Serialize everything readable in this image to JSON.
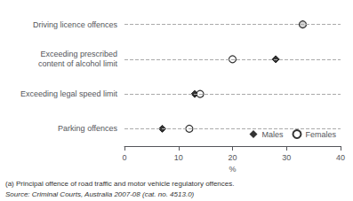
{
  "chart_data": {
    "type": "scatter",
    "orientation": "horizontal",
    "categories": [
      "Parking offences",
      "Exceeding legal speed limit",
      "Exceeding prescribed\ncontent of alcohol limit",
      "Driving licence offences"
    ],
    "series": [
      {
        "name": "Males",
        "color": "#000000",
        "marker": "diamond",
        "values": [
          7,
          13,
          28,
          33
        ]
      },
      {
        "name": "Females",
        "color": "#000000",
        "marker": "circle_open",
        "values": [
          12,
          14,
          20,
          33
        ]
      }
    ],
    "xlabel": "%",
    "xlim": [
      0,
      40
    ],
    "xticks": [
      0,
      10,
      20,
      30,
      40
    ],
    "grid": true,
    "legend": "lower right",
    "annotations": [
      "(a) Principal offence of road traffic and motor vehicle regulatory offences.",
      "Source: Criminal Courts, Australia 2007-08 (cat. no. 4513.0)"
    ]
  }
}
